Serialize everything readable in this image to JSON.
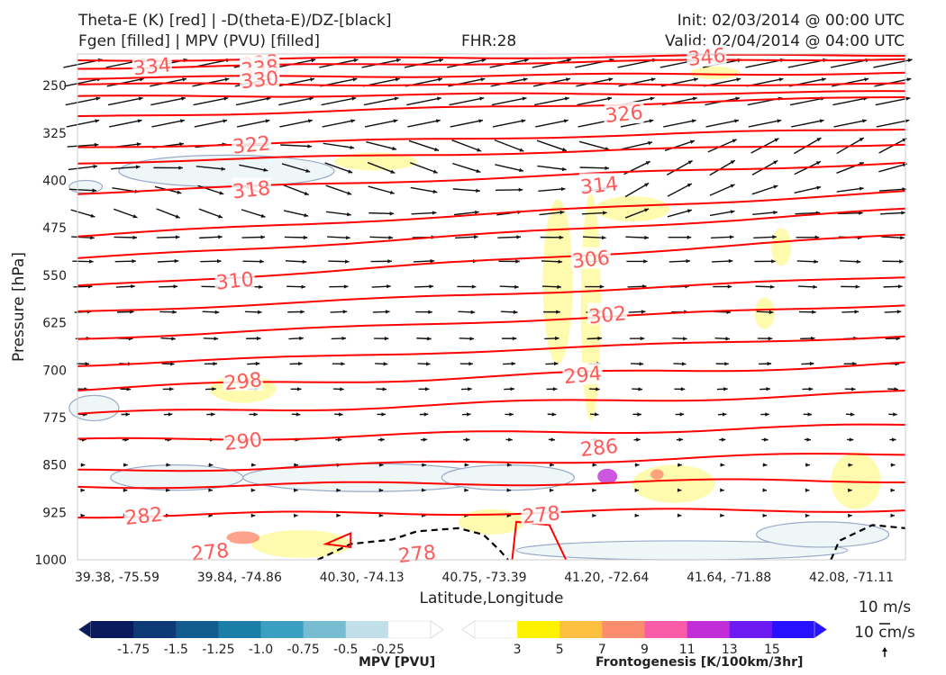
{
  "header": {
    "title_left_1": "Theta-E (K) [red] | -D(theta-E)/DZ-[black]",
    "title_left_2": "Fgen [filled] | MPV (PVU) [filled]",
    "fhr": "FHR:28",
    "init": "Init: 02/03/2014 @ 00:00 UTC",
    "valid": "Valid: 02/04/2014 @ 04:00 UTC"
  },
  "chart_data": {
    "type": "cross-section",
    "xlabel": "Latitude,Longitude",
    "ylabel": "Pressure [hPa]",
    "x_ticks": [
      "39.38, -75.59",
      "39.84, -74.86",
      "40.30, -74.13",
      "40.75, -73.39",
      "41.20, -72.64",
      "41.64, -71.88",
      "42.08, -71.11"
    ],
    "y_ticks": [
      250,
      325,
      400,
      475,
      550,
      625,
      700,
      775,
      850,
      925,
      1000
    ],
    "ylim": [
      1000,
      200
    ],
    "theta_e_labels": [
      {
        "value": "334",
        "xi": 0.09,
        "p": 219
      },
      {
        "value": "338",
        "xi": 0.22,
        "p": 214
      },
      {
        "value": "338",
        "xi": 0.22,
        "p": 222
      },
      {
        "value": "330",
        "xi": 0.22,
        "p": 240
      },
      {
        "value": "346",
        "xi": 0.76,
        "p": 204
      },
      {
        "value": "326",
        "xi": 0.66,
        "p": 294
      },
      {
        "value": "322",
        "xi": 0.21,
        "p": 343
      },
      {
        "value": "318",
        "xi": 0.21,
        "p": 414
      },
      {
        "value": "314",
        "xi": 0.63,
        "p": 407
      },
      {
        "value": "310",
        "xi": 0.19,
        "p": 558
      },
      {
        "value": "306",
        "xi": 0.62,
        "p": 524
      },
      {
        "value": "302",
        "xi": 0.64,
        "p": 612
      },
      {
        "value": "298",
        "xi": 0.2,
        "p": 717
      },
      {
        "value": "294",
        "xi": 0.61,
        "p": 707
      },
      {
        "value": "290",
        "xi": 0.2,
        "p": 812
      },
      {
        "value": "286",
        "xi": 0.63,
        "p": 822
      },
      {
        "value": "282",
        "xi": 0.08,
        "p": 930
      },
      {
        "value": "278",
        "xi": 0.56,
        "p": 928
      },
      {
        "value": "278",
        "xi": 0.16,
        "p": 987
      },
      {
        "value": "278",
        "xi": 0.41,
        "p": 990
      }
    ],
    "theta_e_lines": [
      {
        "p_start": 210,
        "p_end": 201
      },
      {
        "p_start": 222,
        "p_end": 207
      },
      {
        "p_start": 238,
        "p_end": 230
      },
      {
        "p_start": 248,
        "p_end": 248
      },
      {
        "p_start": 268,
        "p_end": 260
      },
      {
        "p_start": 300,
        "p_end": 268
      },
      {
        "p_start": 348,
        "p_end": 318
      },
      {
        "p_start": 372,
        "p_end": 342
      },
      {
        "p_start": 420,
        "p_end": 372
      },
      {
        "p_start": 488,
        "p_end": 418
      },
      {
        "p_start": 524,
        "p_end": 446
      },
      {
        "p_start": 568,
        "p_end": 486
      },
      {
        "p_start": 608,
        "p_end": 552
      },
      {
        "p_start": 650,
        "p_end": 596
      },
      {
        "p_start": 692,
        "p_end": 646
      },
      {
        "p_start": 730,
        "p_end": 690
      },
      {
        "p_start": 770,
        "p_end": 736
      },
      {
        "p_start": 812,
        "p_end": 788
      },
      {
        "p_start": 860,
        "p_end": 832
      },
      {
        "p_start": 884,
        "p_end": 874
      },
      {
        "p_start": 930,
        "p_end": 920
      }
    ],
    "mpv_colorbar": {
      "label": "MPV [PVU]",
      "ticks": [
        "-1.75",
        "-1.5",
        "-1.25",
        "-1.0",
        "-0.75",
        "-0.5",
        "-0.25"
      ],
      "colors": [
        "#0a1a5c",
        "#0f3a78",
        "#125c90",
        "#1a7ea8",
        "#3a9fc0",
        "#78bcd2",
        "#c0dfe8",
        "#ffffff"
      ]
    },
    "fgen_colorbar": {
      "label": "Frontogenesis [K/100km/3hr]",
      "ticks": [
        "3",
        "5",
        "7",
        "9",
        "11",
        "13",
        "15"
      ],
      "colors": [
        "#ffffff",
        "#fff200",
        "#fdbf3f",
        "#fc8c6e",
        "#f85ca8",
        "#c12ed8",
        "#6d1bf0",
        "#2812ff"
      ]
    },
    "vector_key": {
      "label_1": "10 m/s",
      "label_2": "10 cm/s"
    }
  },
  "colors": {
    "theta_e": "#ff0000",
    "theta_e_label": "#ff5a5a",
    "arrows": "#111111",
    "mpv_outline": "#9aabc8",
    "mpv_fill": "#eef6f8",
    "fgen_fill": "#fffaa0"
  }
}
